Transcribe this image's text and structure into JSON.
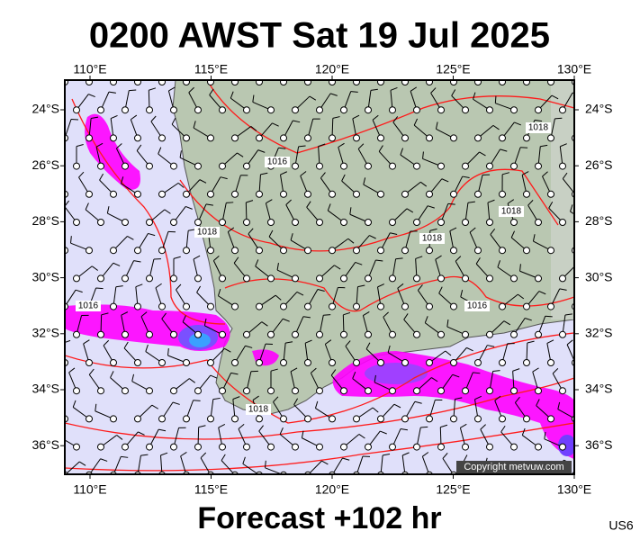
{
  "header": {
    "title": "0200 AWST Sat 19 Jul 2025"
  },
  "map": {
    "lon_labels": [
      "110°E",
      "115°E",
      "120°E",
      "125°E",
      "130°E"
    ],
    "lat_labels": [
      "24°S",
      "26°S",
      "28°S",
      "30°S",
      "32°S",
      "34°S",
      "36°S"
    ],
    "isobar_labels": [
      "1016",
      "1018",
      "1018",
      "1018",
      "1016",
      "1016",
      "1018",
      "1018"
    ],
    "copyright": "Copyright metvuw.com"
  },
  "footer": {
    "forecast": "Forecast +102 hr",
    "code": "US6"
  }
}
